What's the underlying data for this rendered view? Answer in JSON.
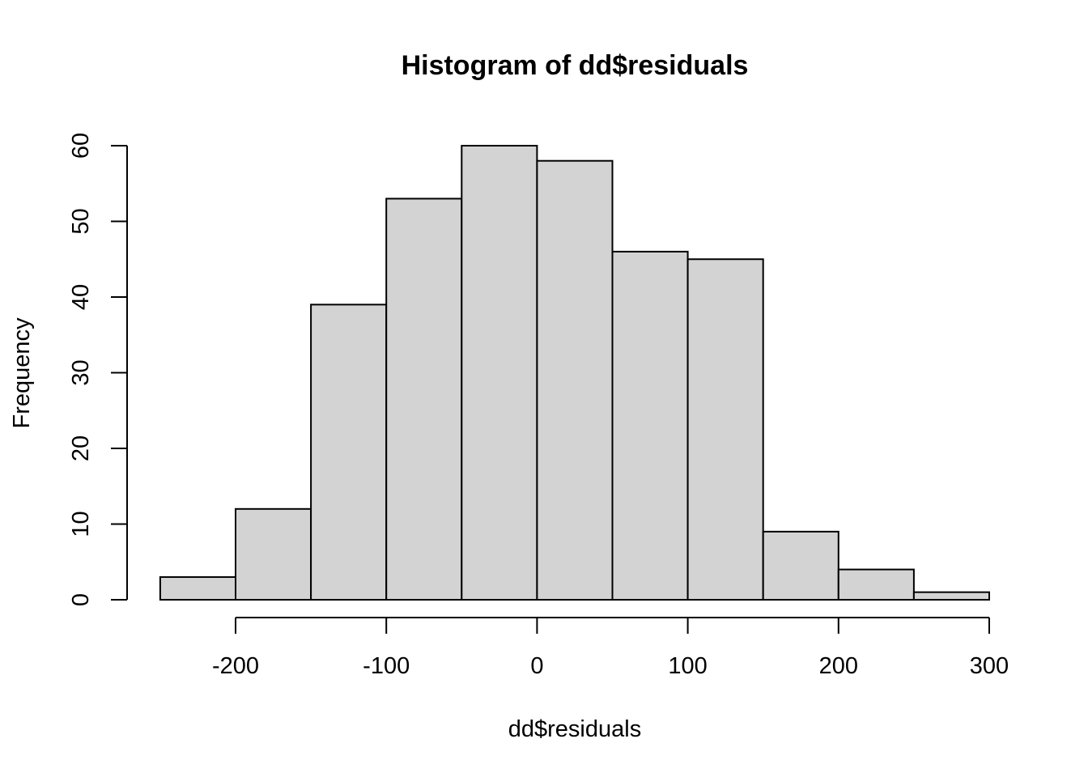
{
  "chart_data": {
    "type": "bar",
    "title": "Histogram of dd$residuals",
    "xlabel": "dd$residuals",
    "ylabel": "Frequency",
    "bin_edges": [
      -250,
      -200,
      -150,
      -100,
      -50,
      0,
      50,
      100,
      150,
      200,
      250,
      300
    ],
    "values": [
      3,
      12,
      39,
      53,
      60,
      58,
      46,
      45,
      9,
      4,
      1
    ],
    "x_ticks": [
      -200,
      -100,
      0,
      100,
      200,
      300
    ],
    "x_tick_labels": [
      "-200",
      "-100",
      "0",
      "100",
      "200",
      "300"
    ],
    "y_ticks": [
      0,
      10,
      20,
      30,
      40,
      50,
      60
    ],
    "y_tick_labels": [
      "0",
      "10",
      "20",
      "30",
      "40",
      "50",
      "60"
    ],
    "xlim": [
      -250,
      300
    ],
    "ylim": [
      0,
      60
    ],
    "grid": false,
    "bar_fill": "#d3d3d3",
    "bar_stroke": "#000000"
  }
}
